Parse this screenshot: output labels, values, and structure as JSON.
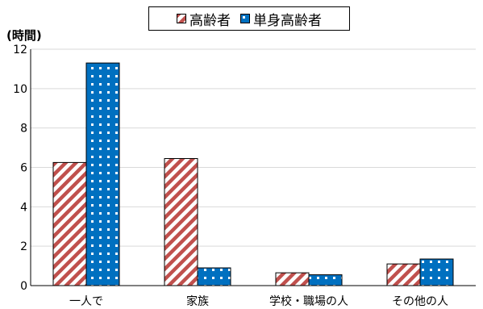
{
  "chart_data": {
    "type": "bar",
    "ylabel": "(時間)",
    "ylim": [
      0,
      12
    ],
    "yticks": [
      0,
      2,
      4,
      6,
      8,
      10,
      12
    ],
    "grid": true,
    "legend_placement": "top-center",
    "categories": [
      "一人で",
      "家族",
      "学校・職場の人",
      "その他の人"
    ],
    "series": [
      {
        "name": "高齢者",
        "values": [
          6.25,
          6.45,
          0.65,
          1.1
        ],
        "pattern": "diagonal-stripes",
        "color": "#c0504d"
      },
      {
        "name": "単身高齢者",
        "values": [
          11.3,
          0.9,
          0.55,
          1.35
        ],
        "pattern": "dots",
        "color": "#0070c0"
      }
    ]
  }
}
